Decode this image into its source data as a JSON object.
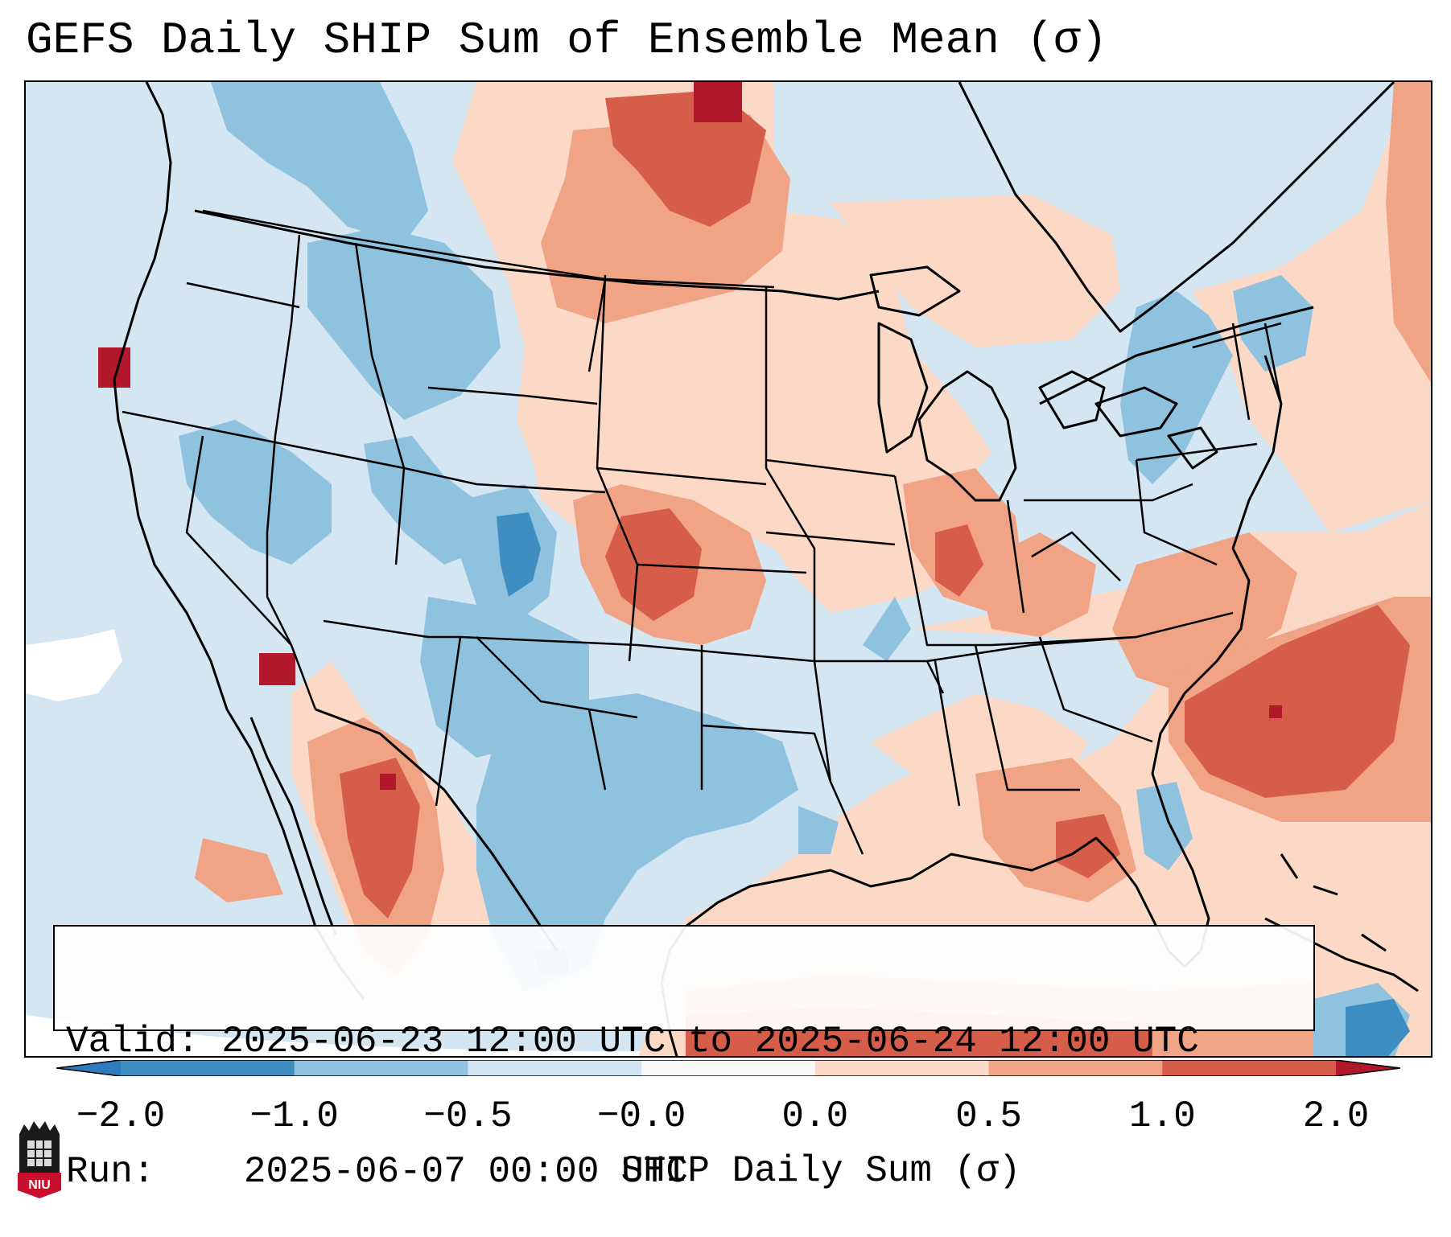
{
  "title": "GEFS Daily SHIP Sum of Ensemble Mean (σ)",
  "info": {
    "valid_label": "Valid:",
    "valid_value": "2025-06-23 12:00 UTC to 2025-06-24 12:00 UTC",
    "run_label": "Run:",
    "run_value": "2025-06-07 00:00 UTC"
  },
  "colorbar": {
    "label": "SHIP Daily Sum (σ)",
    "ticks": [
      "−2.0",
      "−1.0",
      "−0.5",
      "−0.0",
      "0.0",
      "0.5",
      "1.0",
      "2.0"
    ],
    "colors": [
      "#3e8ec4",
      "#8fc2de",
      "#d0e4f1",
      "#f8f8f8",
      "#fcd9c7",
      "#f1a385",
      "#d75d4b"
    ],
    "under_color": "#2f7bbf",
    "over_color": "#b2182b"
  },
  "logo": {
    "text": "NIU"
  }
}
